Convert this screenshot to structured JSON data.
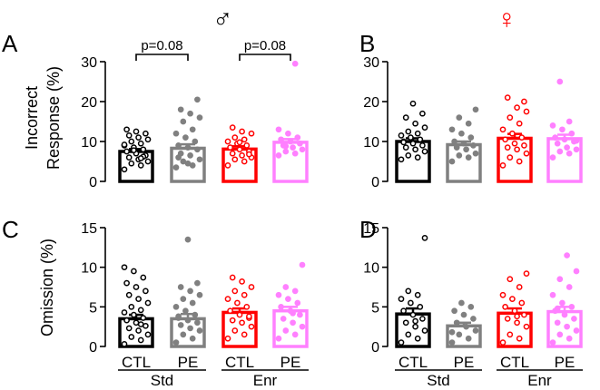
{
  "figure": {
    "sex_symbols": {
      "male": "♂",
      "female": "♀"
    },
    "colors": {
      "CTL_Std": "#000000",
      "PE_Std": "#808080",
      "CTL_Enr": "#ff0000",
      "PE_Enr": "#ff80ff"
    }
  },
  "chart_data": [
    {
      "panel": "A",
      "type": "bar",
      "ylabel_lines": [
        "Incorrect",
        "Response (%)"
      ],
      "ylim": [
        0,
        30
      ],
      "yticks": [
        0,
        10,
        20,
        30
      ],
      "categories": [
        "CTL",
        "PE",
        "CTL",
        "PE"
      ],
      "groups": [
        "Std",
        "Enr"
      ],
      "values": [
        7.5,
        8.3,
        8.1,
        9.8
      ],
      "sem": [
        0.6,
        1.0,
        0.7,
        0.8
      ],
      "points": [
        [
          3.0,
          4.0,
          4.5,
          5.0,
          5.5,
          6.0,
          6.5,
          7.0,
          7.5,
          8.0,
          8.5,
          9.0,
          9.5,
          10.0,
          10.5,
          11.0,
          11.5,
          12.0,
          12.5,
          13.0,
          6.2,
          7.8,
          9.2,
          5.8
        ],
        [
          3.5,
          4.0,
          5.0,
          5.5,
          6.5,
          7.0,
          8.0,
          8.5,
          9.0,
          10.0,
          11.0,
          12.0,
          13.0,
          15.0,
          16.0,
          17.0,
          18.0,
          20.5,
          4.5,
          6.0
        ],
        [
          4.0,
          5.0,
          5.5,
          6.0,
          6.5,
          7.0,
          7.5,
          8.0,
          8.5,
          9.0,
          9.5,
          10.0,
          10.5,
          11.0,
          12.0,
          12.5,
          13.5,
          6.8,
          9.8
        ],
        [
          6.5,
          7.0,
          7.5,
          8.0,
          8.5,
          9.0,
          9.5,
          10.0,
          10.5,
          11.0,
          12.0,
          13.0,
          29.5,
          8.8
        ]
      ],
      "comparisons": [
        {
          "from": 0,
          "to": 1,
          "label": "p=0.08"
        },
        {
          "from": 2,
          "to": 3,
          "label": "p=0.08"
        }
      ]
    },
    {
      "panel": "B",
      "type": "bar",
      "ylim": [
        0,
        30
      ],
      "yticks": [
        0,
        10,
        20,
        30
      ],
      "categories": [
        "CTL",
        "PE",
        "CTL",
        "PE"
      ],
      "groups": [
        "Std",
        "Enr"
      ],
      "values": [
        10.0,
        9.2,
        10.8,
        10.7
      ],
      "sem": [
        0.8,
        0.8,
        1.1,
        1.0
      ],
      "points": [
        [
          5.5,
          6.0,
          6.5,
          7.5,
          8.0,
          8.5,
          9.0,
          9.5,
          10.0,
          10.5,
          11.0,
          11.5,
          12.0,
          12.5,
          13.5,
          14.5,
          16.0,
          17.0,
          19.5,
          9.8
        ],
        [
          5.0,
          6.0,
          6.5,
          7.0,
          8.0,
          8.5,
          9.0,
          9.5,
          10.0,
          11.0,
          12.0,
          13.0,
          14.5,
          16.0,
          18.0
        ],
        [
          4.0,
          5.0,
          6.0,
          7.0,
          8.0,
          8.5,
          9.0,
          9.5,
          10.5,
          11.0,
          12.0,
          13.0,
          14.5,
          16.0,
          17.5,
          18.5,
          21.0,
          20.0
        ],
        [
          6.0,
          7.0,
          7.5,
          8.0,
          8.5,
          9.5,
          10.0,
          10.5,
          11.0,
          12.0,
          13.0,
          14.0,
          15.0,
          25.0,
          10.2
        ]
      ]
    },
    {
      "panel": "C",
      "type": "bar",
      "ylabel_lines": [
        "Omission (%)"
      ],
      "ylim": [
        0,
        15
      ],
      "yticks": [
        0,
        5,
        10,
        15
      ],
      "categories": [
        "CTL",
        "PE",
        "CTL",
        "PE"
      ],
      "groups": [
        "Std",
        "Enr"
      ],
      "values": [
        3.5,
        3.5,
        4.3,
        4.5
      ],
      "sem": [
        0.5,
        0.6,
        0.5,
        0.5
      ],
      "points": [
        [
          0.3,
          0.8,
          1.2,
          1.5,
          2.0,
          2.3,
          2.6,
          3.0,
          3.3,
          3.6,
          4.0,
          4.3,
          4.6,
          5.0,
          5.5,
          6.0,
          6.5,
          7.0,
          7.5,
          8.0,
          8.7,
          9.5,
          10.0,
          2.8
        ],
        [
          0.5,
          1.0,
          1.5,
          2.0,
          2.3,
          2.7,
          3.0,
          3.3,
          3.6,
          4.0,
          4.5,
          5.0,
          5.5,
          6.0,
          6.5,
          7.0,
          7.5,
          8.0,
          13.5,
          3.8
        ],
        [
          1.0,
          1.5,
          2.0,
          2.5,
          3.0,
          3.3,
          3.6,
          4.0,
          4.5,
          5.0,
          5.5,
          6.0,
          6.5,
          7.0,
          7.5,
          8.2,
          8.7,
          3.8
        ],
        [
          1.0,
          1.5,
          2.0,
          2.5,
          3.0,
          3.5,
          4.0,
          4.5,
          5.0,
          5.5,
          6.0,
          6.5,
          7.0,
          7.5,
          10.3,
          4.2
        ]
      ]
    },
    {
      "panel": "D",
      "type": "bar",
      "ylim": [
        0,
        15
      ],
      "yticks": [
        0,
        5,
        10,
        15
      ],
      "categories": [
        "CTL",
        "PE",
        "CTL",
        "PE"
      ],
      "groups": [
        "Std",
        "Enr"
      ],
      "values": [
        4.1,
        2.6,
        4.2,
        4.4
      ],
      "sem": [
        0.7,
        0.4,
        0.6,
        0.6
      ],
      "points": [
        [
          0.5,
          1.0,
          1.5,
          2.0,
          2.5,
          3.0,
          3.5,
          4.0,
          4.5,
          5.0,
          5.5,
          6.0,
          6.5,
          7.0,
          13.7,
          3.2
        ],
        [
          0.5,
          1.0,
          1.5,
          2.0,
          2.5,
          3.0,
          3.5,
          4.0,
          4.5,
          5.0,
          5.5,
          1.8
        ],
        [
          0.5,
          1.0,
          1.5,
          2.5,
          3.0,
          3.5,
          4.0,
          4.5,
          5.0,
          5.5,
          6.0,
          6.5,
          7.5,
          8.5,
          9.2,
          3.8
        ],
        [
          0.5,
          1.0,
          1.5,
          2.0,
          2.5,
          3.0,
          3.5,
          4.0,
          4.5,
          5.0,
          5.5,
          6.5,
          7.5,
          8.5,
          9.5,
          11.5,
          4.8
        ]
      ]
    }
  ]
}
